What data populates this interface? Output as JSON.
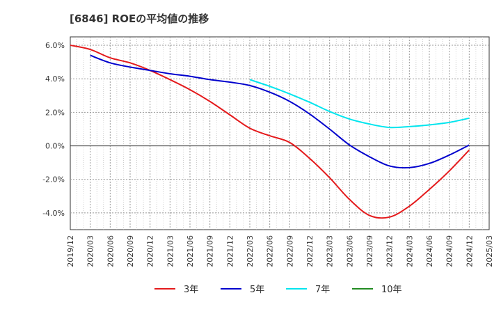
{
  "chart_data": {
    "type": "line",
    "title": "[6846]  ROEの平均値の推移",
    "x_categories": [
      "2019/12",
      "2020/03",
      "2020/06",
      "2020/09",
      "2020/12",
      "2021/03",
      "2021/06",
      "2021/09",
      "2021/12",
      "2022/03",
      "2022/06",
      "2022/09",
      "2022/12",
      "2023/03",
      "2023/06",
      "2023/09",
      "2023/12",
      "2024/03",
      "2024/06",
      "2024/09",
      "2024/12",
      "2025/03"
    ],
    "y_ticks": [
      "6.0%",
      "4.0%",
      "2.0%",
      "0.0%",
      "-2.0%",
      "-4.0%"
    ],
    "y_tick_values": [
      6,
      4,
      2,
      0,
      -2,
      -4
    ],
    "ylim": [
      -5,
      6.5
    ],
    "grid": true,
    "legend_position": "bottom",
    "series": [
      {
        "name": "3年",
        "color": "#e41a1c",
        "x": [
          "2019/12",
          "2020/03",
          "2020/06",
          "2020/09",
          "2020/12",
          "2021/03",
          "2021/06",
          "2021/09",
          "2021/12",
          "2022/03",
          "2022/06",
          "2022/09",
          "2022/12",
          "2023/03",
          "2023/06",
          "2023/09",
          "2023/12",
          "2024/03",
          "2024/06",
          "2024/09",
          "2024/12"
        ],
        "values": [
          6.0,
          5.75,
          5.25,
          4.95,
          4.5,
          3.95,
          3.35,
          2.65,
          1.85,
          1.05,
          0.6,
          0.2,
          -0.75,
          -1.9,
          -3.2,
          -4.15,
          -4.25,
          -3.6,
          -2.6,
          -1.5,
          -0.25
        ]
      },
      {
        "name": "5年",
        "color": "#0000cd",
        "x": [
          "2020/03",
          "2020/06",
          "2020/09",
          "2020/12",
          "2021/03",
          "2021/06",
          "2021/09",
          "2021/12",
          "2022/03",
          "2022/06",
          "2022/09",
          "2022/12",
          "2023/03",
          "2023/06",
          "2023/09",
          "2023/12",
          "2024/03",
          "2024/06",
          "2024/09",
          "2024/12"
        ],
        "values": [
          5.4,
          4.95,
          4.7,
          4.5,
          4.3,
          4.15,
          3.95,
          3.8,
          3.6,
          3.2,
          2.65,
          1.9,
          1.0,
          0.05,
          -0.65,
          -1.2,
          -1.3,
          -1.05,
          -0.55,
          0.05
        ]
      },
      {
        "name": "7年",
        "color": "#00e5ee",
        "x": [
          "2022/03",
          "2022/06",
          "2022/09",
          "2022/12",
          "2023/03",
          "2023/06",
          "2023/09",
          "2023/12",
          "2024/03",
          "2024/06",
          "2024/09",
          "2024/12"
        ],
        "values": [
          3.95,
          3.55,
          3.1,
          2.6,
          2.05,
          1.6,
          1.3,
          1.1,
          1.15,
          1.25,
          1.4,
          1.65
        ]
      },
      {
        "name": "10年",
        "color": "#228b22",
        "x": [],
        "values": []
      }
    ]
  }
}
